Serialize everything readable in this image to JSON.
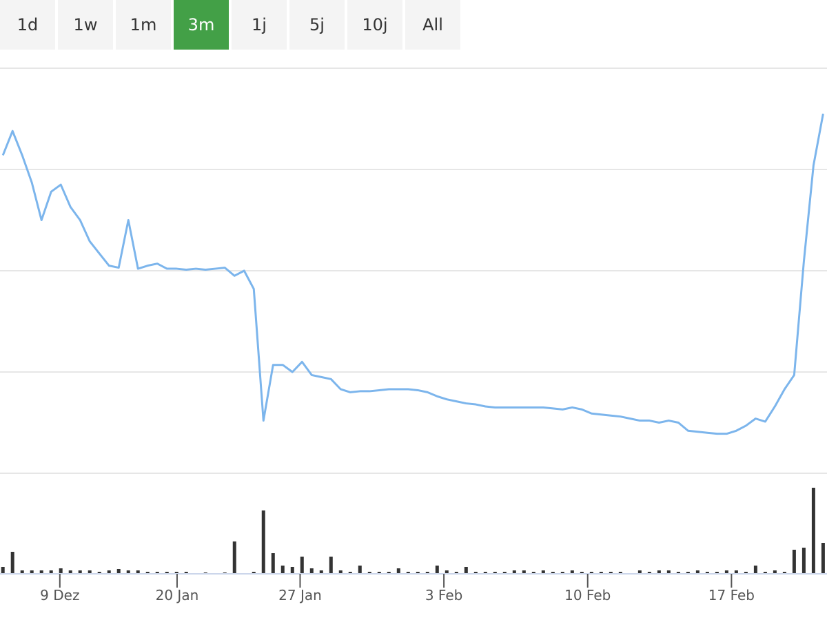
{
  "range_buttons": [
    "1d",
    "1w",
    "1m",
    "3m",
    "1j",
    "5j",
    "10j",
    "All"
  ],
  "active": 3,
  "chart_data": [
    {
      "type": "line",
      "color": "#7cb5ec",
      "grid": true,
      "x": [
        0,
        1,
        2,
        3,
        4,
        5,
        6,
        7,
        8,
        9,
        10,
        11,
        12,
        13,
        14,
        15,
        16,
        17,
        18,
        19,
        20,
        21,
        22,
        23,
        24,
        25,
        26,
        27,
        28,
        29,
        30,
        31,
        32,
        33,
        34,
        35,
        36,
        37,
        38,
        39,
        40,
        41,
        42,
        43,
        44,
        45,
        46,
        47,
        48,
        49,
        50,
        51,
        52,
        53,
        54,
        55,
        56,
        57,
        58,
        59,
        60,
        61,
        62,
        63,
        64,
        65,
        66,
        67,
        68,
        69,
        70,
        71,
        72,
        73,
        74,
        75,
        76,
        77,
        78,
        79,
        80,
        81,
        82,
        83,
        84,
        85
      ],
      "values": [
        314,
        338,
        314,
        287,
        250,
        278,
        285,
        263,
        250,
        229,
        217,
        205,
        203,
        250,
        202,
        205,
        207,
        202,
        202,
        201,
        202,
        201,
        202,
        203,
        195,
        200,
        182,
        52,
        107,
        107,
        100,
        110,
        97,
        95,
        93,
        83,
        80,
        81,
        81,
        82,
        83,
        83,
        83,
        82,
        80,
        76,
        73,
        71,
        69,
        68,
        66,
        65,
        65,
        65,
        65,
        65,
        65,
        64,
        63,
        65,
        63,
        59,
        58,
        57,
        56,
        54,
        52,
        52,
        50,
        52,
        50,
        42,
        41,
        40,
        39,
        39,
        42,
        47,
        54,
        51,
        66,
        83,
        97,
        209,
        304,
        355
      ],
      "xlim": [
        -0.3,
        85.4
      ],
      "xticks": [
        {
          "value": 5.9,
          "label": "9 Dez"
        },
        {
          "value": 18.05,
          "label": "20 Jan"
        },
        {
          "value": 30.8,
          "label": "27 Jan"
        },
        {
          "value": 45.7,
          "label": "3 Feb"
        },
        {
          "value": 60.6,
          "label": "10 Feb"
        },
        {
          "value": 75.5,
          "label": "17 Feb"
        }
      ],
      "ylim": [
        0,
        400
      ],
      "yticks": [
        0,
        100,
        200,
        300,
        400
      ]
    },
    {
      "type": "bar",
      "color": "#333333",
      "values": [
        10,
        32,
        5,
        5,
        5,
        5,
        8,
        5,
        5,
        5,
        3,
        5,
        7,
        5,
        5,
        3,
        3,
        3,
        3,
        3,
        0,
        2,
        0,
        2,
        47,
        0,
        3,
        92,
        30,
        12,
        10,
        25,
        8,
        5,
        25,
        5,
        3,
        12,
        3,
        3,
        3,
        8,
        3,
        3,
        3,
        12,
        5,
        3,
        10,
        3,
        3,
        3,
        3,
        5,
        5,
        3,
        5,
        3,
        3,
        5,
        3,
        3,
        3,
        3,
        3,
        0,
        5,
        3,
        5,
        5,
        3,
        3,
        5,
        3,
        3,
        5,
        5,
        3,
        12,
        3,
        5,
        3,
        35,
        38,
        125,
        45
      ],
      "ylim": [
        0,
        130
      ]
    }
  ]
}
